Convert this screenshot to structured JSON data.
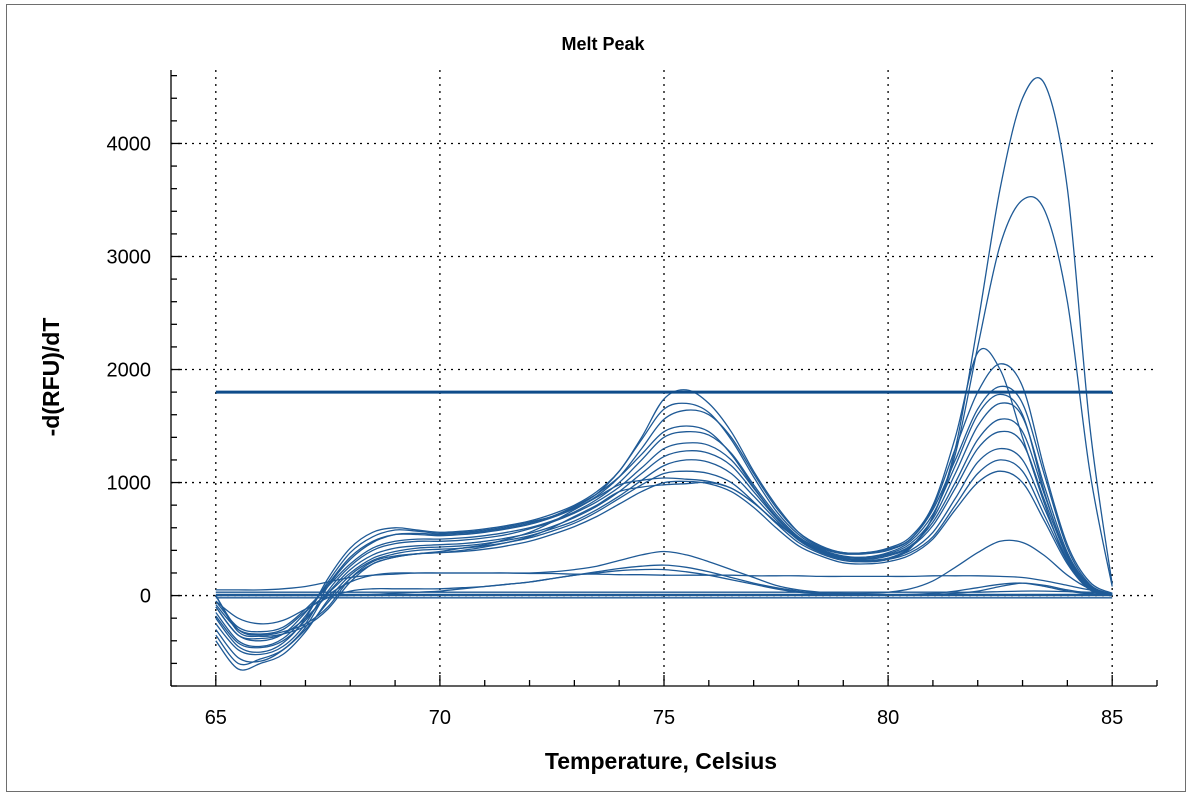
{
  "chart_data": {
    "type": "line",
    "title": "Melt Peak",
    "xlabel": "Temperature, Celsius",
    "ylabel": "-d(RFU)/dT",
    "xlim": [
      64,
      86
    ],
    "ylim": [
      -800,
      4650
    ],
    "xticks": [
      65,
      70,
      75,
      80,
      85
    ],
    "yticks": [
      0,
      1000,
      2000,
      3000,
      4000
    ],
    "grid": true,
    "line_color": "#1f5a96",
    "threshold_color": "#0f4c8a",
    "threshold": 1800,
    "x": [
      65,
      65.5,
      66,
      66.5,
      67,
      67.5,
      68,
      68.5,
      69,
      69.5,
      70,
      70.5,
      71,
      71.5,
      72,
      72.5,
      73,
      73.5,
      74,
      74.5,
      75,
      75.5,
      76,
      76.5,
      77,
      77.5,
      78,
      78.5,
      79,
      79.5,
      80,
      80.5,
      81,
      81.5,
      82,
      82.5,
      83,
      83.5,
      84,
      84.5,
      85
    ],
    "series": [
      {
        "values": [
          0,
          -300,
          -350,
          -320,
          -250,
          -100,
          150,
          300,
          350,
          370,
          380,
          400,
          430,
          470,
          520,
          600,
          700,
          800,
          920,
          960,
          980,
          990,
          1000,
          950,
          820,
          650,
          500,
          400,
          330,
          300,
          320,
          420,
          700,
          1300,
          2400,
          3600,
          4400,
          4520,
          3600,
          1500,
          100
        ]
      },
      {
        "values": [
          0,
          -320,
          -360,
          -340,
          -270,
          -120,
          120,
          280,
          340,
          370,
          390,
          420,
          450,
          500,
          560,
          650,
          760,
          870,
          980,
          1020,
          1040,
          1030,
          1010,
          950,
          820,
          650,
          500,
          400,
          330,
          300,
          330,
          430,
          700,
          1250,
          2200,
          3100,
          3500,
          3400,
          2600,
          1100,
          80
        ]
      },
      {
        "values": [
          -200,
          -450,
          -500,
          -420,
          -200,
          150,
          420,
          560,
          600,
          580,
          560,
          570,
          590,
          620,
          660,
          720,
          800,
          920,
          1100,
          1400,
          1740,
          1820,
          1700,
          1450,
          1100,
          800,
          560,
          430,
          380,
          380,
          420,
          520,
          800,
          1400,
          2150,
          2000,
          1400,
          800,
          300,
          80,
          10
        ]
      },
      {
        "values": [
          -150,
          -400,
          -450,
          -380,
          -180,
          120,
          380,
          520,
          580,
          570,
          550,
          560,
          580,
          610,
          650,
          700,
          780,
          900,
          1100,
          1380,
          1650,
          1700,
          1620,
          1380,
          1050,
          750,
          540,
          420,
          370,
          370,
          400,
          500,
          780,
          1300,
          1800,
          2050,
          1850,
          1100,
          450,
          120,
          20
        ]
      },
      {
        "values": [
          -100,
          -350,
          -400,
          -340,
          -150,
          100,
          340,
          480,
          540,
          540,
          530,
          540,
          560,
          590,
          630,
          690,
          770,
          880,
          1050,
          1300,
          1560,
          1640,
          1600,
          1400,
          1080,
          780,
          560,
          440,
          380,
          380,
          410,
          500,
          760,
          1200,
          1650,
          1850,
          1700,
          1050,
          420,
          100,
          15
        ]
      },
      {
        "values": [
          -250,
          -480,
          -520,
          -450,
          -250,
          80,
          320,
          470,
          540,
          550,
          540,
          550,
          570,
          600,
          640,
          700,
          790,
          900,
          1050,
          1250,
          1450,
          1500,
          1450,
          1250,
          960,
          700,
          510,
          400,
          340,
          340,
          380,
          480,
          720,
          1150,
          1600,
          1780,
          1600,
          900,
          350,
          90,
          10
        ]
      },
      {
        "values": [
          -50,
          -280,
          -320,
          -280,
          -120,
          80,
          280,
          420,
          480,
          500,
          500,
          510,
          530,
          560,
          600,
          660,
          740,
          850,
          1000,
          1200,
          1400,
          1450,
          1420,
          1260,
          980,
          720,
          520,
          410,
          350,
          340,
          370,
          460,
          680,
          1080,
          1500,
          1700,
          1580,
          950,
          380,
          90,
          10
        ]
      },
      {
        "values": [
          -300,
          -550,
          -580,
          -480,
          -280,
          40,
          260,
          400,
          460,
          480,
          480,
          490,
          510,
          540,
          590,
          650,
          730,
          830,
          960,
          1130,
          1300,
          1350,
          1330,
          1200,
          950,
          700,
          510,
          400,
          340,
          330,
          360,
          440,
          650,
          1000,
          1380,
          1560,
          1450,
          880,
          360,
          90,
          10
        ]
      },
      {
        "values": [
          -180,
          -420,
          -460,
          -400,
          -220,
          20,
          230,
          360,
          420,
          440,
          450,
          460,
          480,
          510,
          550,
          610,
          690,
          790,
          920,
          1080,
          1230,
          1280,
          1260,
          1150,
          920,
          690,
          500,
          390,
          330,
          320,
          350,
          430,
          620,
          950,
          1300,
          1450,
          1350,
          830,
          340,
          80,
          10
        ]
      },
      {
        "values": [
          -80,
          -300,
          -340,
          -300,
          -140,
          20,
          200,
          330,
          390,
          420,
          430,
          440,
          460,
          490,
          530,
          590,
          660,
          760,
          880,
          1020,
          1150,
          1200,
          1180,
          1080,
          880,
          670,
          490,
          380,
          320,
          310,
          330,
          400,
          560,
          860,
          1180,
          1300,
          1200,
          760,
          320,
          70,
          5
        ]
      },
      {
        "values": [
          -400,
          -650,
          -600,
          -520,
          -320,
          -40,
          180,
          310,
          370,
          400,
          410,
          420,
          440,
          470,
          510,
          570,
          640,
          740,
          860,
          980,
          1080,
          1100,
          1080,
          1000,
          830,
          640,
          470,
          370,
          310,
          300,
          320,
          380,
          520,
          800,
          1080,
          1200,
          1100,
          700,
          300,
          60,
          5
        ]
      },
      {
        "values": [
          -350,
          -600,
          -560,
          -480,
          -300,
          -60,
          150,
          280,
          340,
          370,
          380,
          390,
          410,
          440,
          480,
          540,
          610,
          700,
          810,
          920,
          1000,
          1010,
          990,
          920,
          780,
          600,
          440,
          350,
          290,
          280,
          300,
          360,
          500,
          760,
          1000,
          1100,
          1000,
          650,
          280,
          50,
          5
        ]
      },
      {
        "values": [
          50,
          50,
          50,
          60,
          80,
          120,
          160,
          180,
          190,
          200,
          200,
          200,
          200,
          200,
          195,
          195,
          190,
          190,
          185,
          185,
          180,
          180,
          180,
          180,
          175,
          175,
          175,
          170,
          170,
          170,
          170,
          170,
          175,
          175,
          175,
          170,
          160,
          130,
          90,
          50,
          20
        ]
      },
      {
        "values": [
          -100,
          -350,
          -380,
          -340,
          -200,
          0,
          120,
          180,
          200,
          200,
          200,
          200,
          200,
          200,
          200,
          210,
          230,
          260,
          310,
          360,
          390,
          360,
          300,
          230,
          160,
          90,
          50,
          30,
          20,
          20,
          30,
          60,
          130,
          250,
          380,
          480,
          470,
          350,
          180,
          60,
          10
        ]
      },
      {
        "values": [
          0,
          0,
          0,
          0,
          0,
          0,
          0,
          10,
          20,
          30,
          40,
          60,
          80,
          100,
          120,
          150,
          180,
          210,
          240,
          260,
          270,
          250,
          210,
          160,
          110,
          70,
          40,
          20,
          10,
          5,
          5,
          5,
          10,
          20,
          40,
          80,
          110,
          90,
          50,
          20,
          5
        ]
      },
      {
        "values": [
          -50,
          -200,
          -250,
          -220,
          -120,
          -20,
          40,
          60,
          60,
          60,
          60,
          70,
          80,
          100,
          120,
          150,
          180,
          200,
          220,
          230,
          230,
          210,
          180,
          140,
          100,
          60,
          30,
          15,
          10,
          5,
          5,
          10,
          20,
          40,
          70,
          100,
          110,
          80,
          40,
          15,
          5
        ]
      },
      {
        "values": [
          30,
          30,
          30,
          30,
          30,
          30,
          30,
          30,
          30,
          30,
          30,
          30,
          30,
          30,
          30,
          30,
          30,
          30,
          30,
          30,
          30,
          30,
          30,
          30,
          30,
          30,
          30,
          30,
          30,
          30,
          30,
          30,
          30,
          30,
          30,
          35,
          40,
          40,
          35,
          30,
          20
        ]
      },
      {
        "values": [
          10,
          10,
          10,
          10,
          10,
          10,
          10,
          10,
          10,
          10,
          10,
          10,
          10,
          10,
          10,
          10,
          10,
          10,
          10,
          10,
          10,
          10,
          10,
          10,
          10,
          10,
          10,
          10,
          10,
          10,
          10,
          10,
          10,
          10,
          10,
          10,
          10,
          10,
          10,
          10,
          10
        ]
      },
      {
        "values": [
          0,
          0,
          0,
          0,
          0,
          0,
          0,
          0,
          0,
          0,
          0,
          0,
          0,
          0,
          0,
          0,
          0,
          0,
          0,
          0,
          0,
          0,
          0,
          0,
          0,
          0,
          0,
          0,
          0,
          0,
          0,
          0,
          0,
          0,
          0,
          0,
          0,
          0,
          0,
          0,
          0
        ]
      },
      {
        "values": [
          -20,
          -20,
          -20,
          -20,
          -20,
          -20,
          -20,
          -20,
          -20,
          -20,
          -20,
          -20,
          -20,
          -20,
          -20,
          -20,
          -20,
          -20,
          -20,
          -20,
          -20,
          -20,
          -20,
          -20,
          -20,
          -20,
          -20,
          -20,
          -20,
          -20,
          -20,
          -20,
          -20,
          -20,
          -20,
          -20,
          -20,
          -20,
          -20,
          -20,
          -20
        ]
      }
    ]
  }
}
